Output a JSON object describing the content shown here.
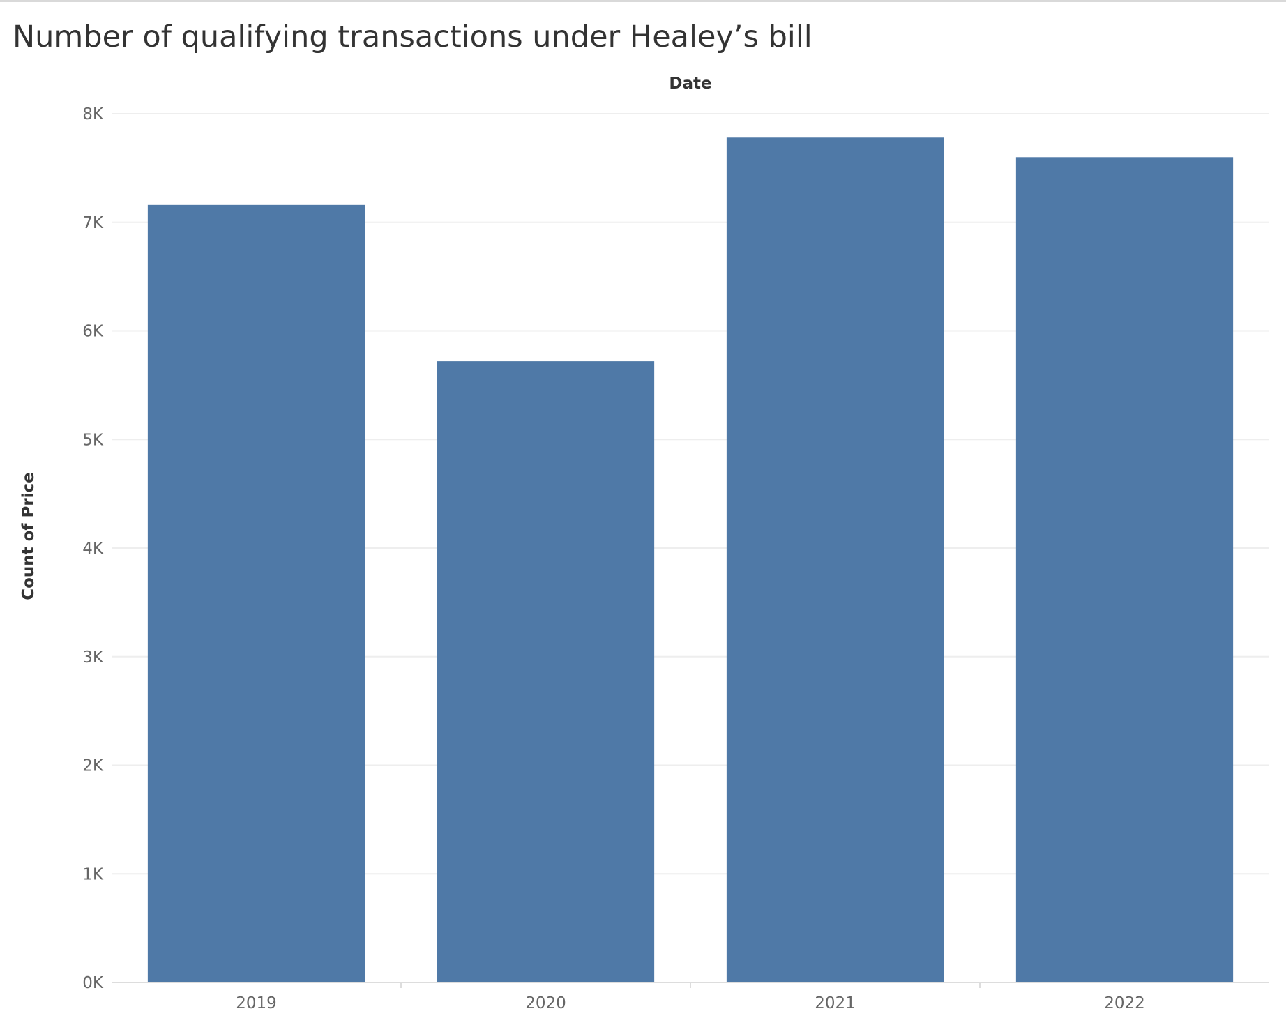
{
  "chart_data": {
    "type": "bar",
    "title": "Number of qualifying transactions under Healey’s bill",
    "xlabel": "Date",
    "ylabel": "Count of Price",
    "categories": [
      "2019",
      "2020",
      "2021",
      "2022"
    ],
    "values": [
      7160,
      5720,
      7780,
      7600
    ],
    "ylim": [
      0,
      8000
    ],
    "yticks": [
      0,
      1000,
      2000,
      3000,
      4000,
      5000,
      6000,
      7000,
      8000
    ],
    "ytick_labels": [
      "0K",
      "1K",
      "2K",
      "3K",
      "4K",
      "5K",
      "6K",
      "7K",
      "8K"
    ],
    "grid": true,
    "legend": "none",
    "bar_color": "#4f79a7",
    "grid_color": "#eeeeee"
  }
}
